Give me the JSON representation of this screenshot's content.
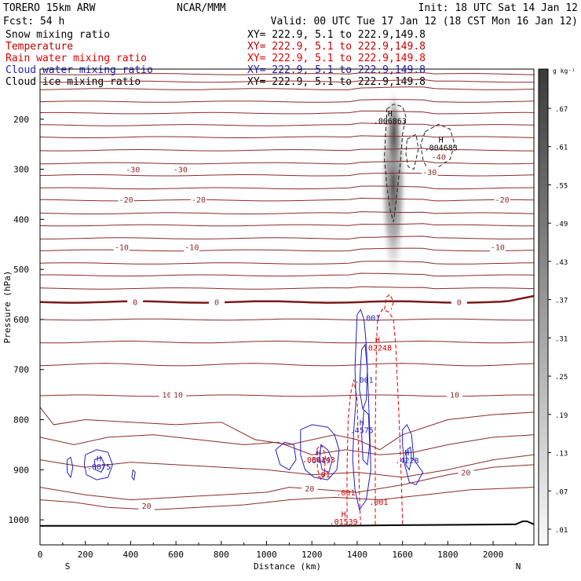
{
  "header": {
    "model": "TORERO  15km ARW",
    "org": "NCAR/MMM",
    "init": "Init: 18 UTC Sat 14 Jan 12",
    "fcst": "Fcst:   54 h",
    "valid": "Valid: 00 UTC Tue 17 Jan 12 (18 CST Mon 16 Jan 12)"
  },
  "legend": [
    {
      "name": "Snow mixing ratio",
      "xy": "XY= 222.9,  5.1 to 222.9,149.8",
      "color": "#000000"
    },
    {
      "name": "Temperature",
      "xy": "XY= 222.9,  5.1 to 222.9,149.8",
      "color": "#c00000"
    },
    {
      "name": "Rain water mixing ratio",
      "xy": "XY= 222.9,  5.1 to 222.9,149.8",
      "color": "#e00000"
    },
    {
      "name": "Cloud water mixing ratio",
      "xy": "XY= 222.9,  5.1 to 222.9,149.8",
      "color": "#2020c0"
    },
    {
      "name": "Cloud ice mixing ratio",
      "xy": "XY= 222.9,  5.1 to 222.9,149.8",
      "color": "#000000"
    }
  ],
  "chart_data": {
    "type": "cross-section",
    "xlabel": "Distance (km)",
    "ylabel": "Pressure (hPa)",
    "xlim": [
      0,
      2180
    ],
    "ylim": [
      1050,
      100
    ],
    "x_ticks": [
      "0",
      "200",
      "400",
      "600",
      "800",
      "1000",
      "1200",
      "1400",
      "1600",
      "1800",
      "2000"
    ],
    "y_ticks": [
      "200",
      "300",
      "400",
      "500",
      "600",
      "700",
      "800",
      "900",
      "1000"
    ],
    "x_ends": {
      "left": "S",
      "right": "N"
    },
    "colorbar": {
      "unit": "g kg⁻¹",
      "labels": [
        ".67",
        ".61",
        ".55",
        ".49",
        ".43",
        ".37",
        ".31",
        ".25",
        ".19",
        ".13",
        ".07",
        ".01"
      ]
    },
    "temperature_labels": [
      {
        "x": 410,
        "p": 300,
        "v": "-30"
      },
      {
        "x": 620,
        "p": 300,
        "v": "-30"
      },
      {
        "x": 1760,
        "p": 275,
        "v": "-40"
      },
      {
        "x": 1720,
        "p": 305,
        "v": "-30"
      },
      {
        "x": 380,
        "p": 360,
        "v": "-20"
      },
      {
        "x": 700,
        "p": 360,
        "v": "-20"
      },
      {
        "x": 2040,
        "p": 360,
        "v": "-20"
      },
      {
        "x": 360,
        "p": 455,
        "v": "-10"
      },
      {
        "x": 670,
        "p": 455,
        "v": "-10"
      },
      {
        "x": 2020,
        "p": 455,
        "v": "-10"
      },
      {
        "x": 420,
        "p": 565,
        "v": "0"
      },
      {
        "x": 780,
        "p": 565,
        "v": "0"
      },
      {
        "x": 1850,
        "p": 565,
        "v": "0"
      },
      {
        "x": 560,
        "p": 750,
        "v": "10"
      },
      {
        "x": 610,
        "p": 750,
        "v": "10"
      },
      {
        "x": 1830,
        "p": 750,
        "v": "10"
      },
      {
        "x": 1880,
        "p": 905,
        "v": "20"
      },
      {
        "x": 1190,
        "p": 937,
        "v": "20"
      },
      {
        "x": 470,
        "p": 972,
        "v": "20"
      }
    ],
    "annotations": [
      {
        "x": 1545,
        "p": 188,
        "text": "H",
        "color": "#000000"
      },
      {
        "x": 1545,
        "p": 203,
        "text": ".006863",
        "color": "#000000"
      },
      {
        "x": 1770,
        "p": 240,
        "text": "H",
        "color": "#000000"
      },
      {
        "x": 1770,
        "p": 256,
        "text": ".004683",
        "color": "#000000"
      },
      {
        "x": 1460,
        "p": 596,
        "text": ".001",
        "color": "#2020c0"
      },
      {
        "x": 1490,
        "p": 640,
        "text": "H",
        "color": "#d00000"
      },
      {
        "x": 1490,
        "p": 656,
        "text": ".02248",
        "color": "#d00000"
      },
      {
        "x": 1430,
        "p": 720,
        "text": ".001",
        "color": "#2020c0"
      },
      {
        "x": 1420,
        "p": 805,
        "text": "H",
        "color": "#2020c0"
      },
      {
        "x": 1420,
        "p": 820,
        "text": ".4575",
        "color": "#2020c0"
      },
      {
        "x": 1230,
        "p": 865,
        "text": "H",
        "color": "#2020c0"
      },
      {
        "x": 1230,
        "p": 881,
        "text": ".6449",
        "color": "#2020c0"
      },
      {
        "x": 1230,
        "p": 879,
        "text": ".009143",
        "color": "#d00000"
      },
      {
        "x": 1250,
        "p": 909,
        "text": ".01",
        "color": "#d00000"
      },
      {
        "x": 1350,
        "p": 945,
        "text": ".001",
        "color": "#d00000"
      },
      {
        "x": 1495,
        "p": 964,
        "text": ".001",
        "color": "#d00000"
      },
      {
        "x": 1620,
        "p": 865,
        "text": "H",
        "color": "#2020c0"
      },
      {
        "x": 1620,
        "p": 881,
        "text": ".4228",
        "color": "#2020c0"
      },
      {
        "x": 260,
        "p": 877,
        "text": "H",
        "color": "#2020c0"
      },
      {
        "x": 260,
        "p": 893,
        "text": ".0075",
        "color": "#2020c0"
      },
      {
        "x": 1340,
        "p": 988,
        "text": "H",
        "color": "#d00000"
      },
      {
        "x": 1340,
        "p": 1003,
        "text": ".01539",
        "color": "#d00000"
      }
    ]
  }
}
